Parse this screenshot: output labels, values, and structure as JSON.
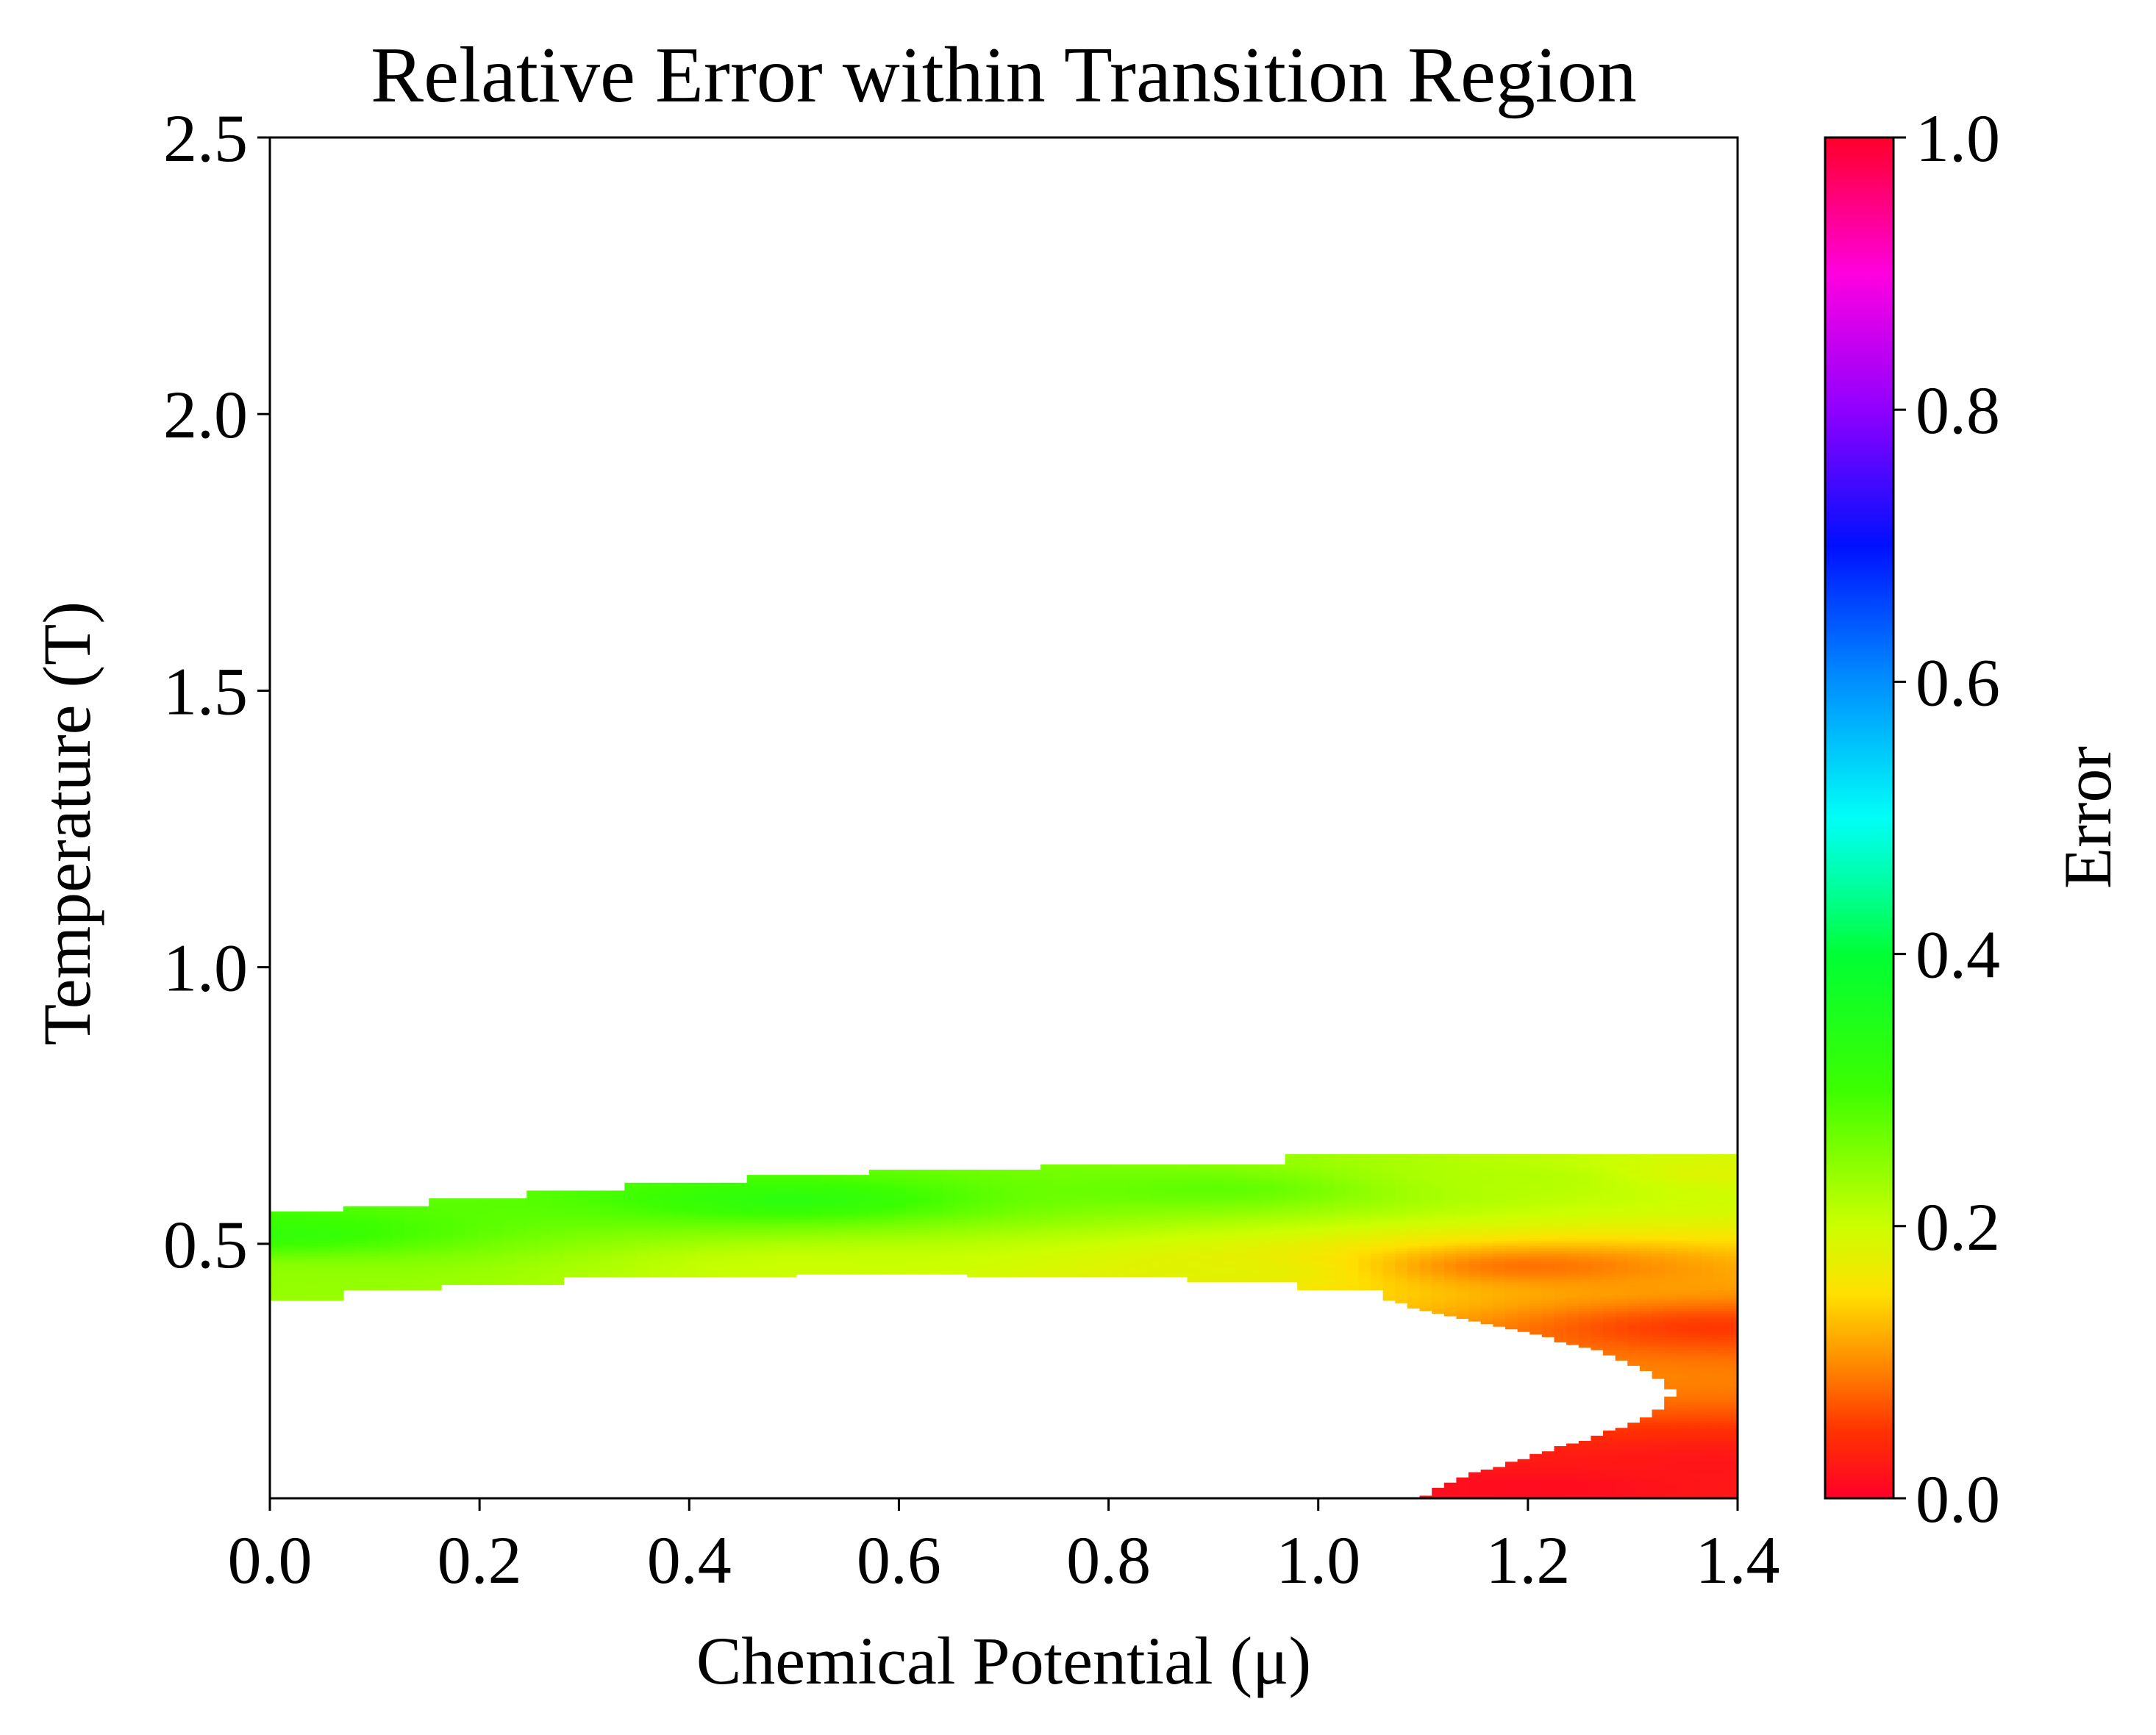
{
  "chart_data": {
    "type": "heatmap",
    "title": "Relative Error within Transition Region",
    "xlabel": "Chemical Potential (μ)",
    "ylabel": "Temperature (T)",
    "xlim": [
      0.0,
      1.4
    ],
    "ylim": [
      0.04,
      2.5
    ],
    "x_ticks": [
      "0.0",
      "0.2",
      "0.4",
      "0.6",
      "0.8",
      "1.0",
      "1.2",
      "1.4"
    ],
    "y_ticks": [
      "0.5",
      "1.0",
      "1.5",
      "2.0",
      "2.5"
    ],
    "colorbar": {
      "label": "Error",
      "range": [
        0.0,
        1.0
      ],
      "ticks": [
        "0.0",
        "0.2",
        "0.4",
        "0.6",
        "0.8",
        "1.0"
      ],
      "colormap": "gist_rainbow_r",
      "stops": [
        {
          "value": 0.0,
          "color": "#ff0029"
        },
        {
          "value": 0.05,
          "color": "#ff3300"
        },
        {
          "value": 0.1,
          "color": "#ff8c00"
        },
        {
          "value": 0.15,
          "color": "#ffe000"
        },
        {
          "value": 0.2,
          "color": "#ccff00"
        },
        {
          "value": 0.3,
          "color": "#3dff00"
        },
        {
          "value": 0.4,
          "color": "#00ff34"
        },
        {
          "value": 0.45,
          "color": "#00ff9e"
        },
        {
          "value": 0.5,
          "color": "#00fff7"
        },
        {
          "value": 0.6,
          "color": "#008fff"
        },
        {
          "value": 0.7,
          "color": "#0010ff"
        },
        {
          "value": 0.8,
          "color": "#8f00ff"
        },
        {
          "value": 0.9,
          "color": "#ff00e0"
        },
        {
          "value": 1.0,
          "color": "#ff0029"
        }
      ]
    },
    "grid": false,
    "region": {
      "description_units": "mu columns with temperature bounds",
      "top_boundary": [
        {
          "mu": 0.0,
          "t": 0.56
        },
        {
          "mu": 0.07,
          "t": 0.57
        },
        {
          "mu": 0.15,
          "t": 0.58
        },
        {
          "mu": 0.24,
          "t": 0.595
        },
        {
          "mu": 0.34,
          "t": 0.61
        },
        {
          "mu": 0.45,
          "t": 0.625
        },
        {
          "mu": 0.57,
          "t": 0.635
        },
        {
          "mu": 0.73,
          "t": 0.645
        },
        {
          "mu": 0.97,
          "t": 0.66
        },
        {
          "mu": 1.4,
          "t": 0.66
        }
      ],
      "bottom_boundary": [
        {
          "mu": 0.0,
          "t": 0.4
        },
        {
          "mu": 0.07,
          "t": 0.415
        },
        {
          "mu": 0.16,
          "t": 0.425
        },
        {
          "mu": 0.28,
          "t": 0.44
        },
        {
          "mu": 0.5,
          "t": 0.445
        },
        {
          "mu": 0.67,
          "t": 0.44
        },
        {
          "mu": 0.88,
          "t": 0.43
        },
        {
          "mu": 0.98,
          "t": 0.415
        },
        {
          "mu": 1.06,
          "t": 0.4
        },
        {
          "mu": 1.15,
          "t": 0.36
        },
        {
          "mu": 1.22,
          "t": 0.33
        },
        {
          "mu": 1.28,
          "t": 0.3
        },
        {
          "mu": 1.32,
          "t": 0.265
        },
        {
          "mu": 1.34,
          "t": 0.23
        },
        {
          "mu": 1.32,
          "t": 0.19
        },
        {
          "mu": 1.27,
          "t": 0.155
        },
        {
          "mu": 1.21,
          "t": 0.12
        },
        {
          "mu": 1.13,
          "t": 0.075
        },
        {
          "mu": 1.1,
          "t": 0.04
        }
      ],
      "lower_lobe_top": 0.23,
      "error_samples": [
        {
          "mu": 0.0,
          "t": 0.52,
          "error": 0.32
        },
        {
          "mu": 0.0,
          "t": 0.44,
          "error": 0.24
        },
        {
          "mu": 0.5,
          "t": 0.58,
          "error": 0.33
        },
        {
          "mu": 0.5,
          "t": 0.46,
          "error": 0.2
        },
        {
          "mu": 0.9,
          "t": 0.6,
          "error": 0.28
        },
        {
          "mu": 0.9,
          "t": 0.45,
          "error": 0.18
        },
        {
          "mu": 1.2,
          "t": 0.62,
          "error": 0.22
        },
        {
          "mu": 1.2,
          "t": 0.46,
          "error": 0.08
        },
        {
          "mu": 1.38,
          "t": 0.63,
          "error": 0.18
        },
        {
          "mu": 1.38,
          "t": 0.35,
          "error": 0.05
        },
        {
          "mu": 1.38,
          "t": 0.1,
          "error": 0.02
        },
        {
          "mu": 1.2,
          "t": 0.06,
          "error": 0.01
        }
      ]
    }
  }
}
